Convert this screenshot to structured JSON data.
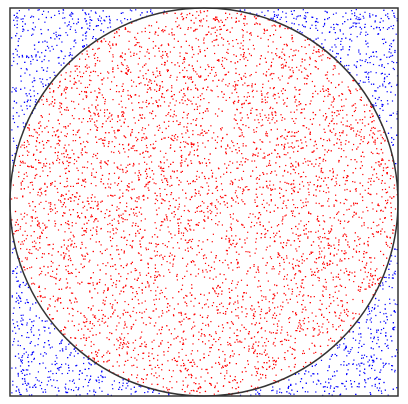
{
  "diagram": {
    "inside_color": "#ff0000",
    "outside_color": "#0000ff",
    "frame_color": "#333333"
  }
}
